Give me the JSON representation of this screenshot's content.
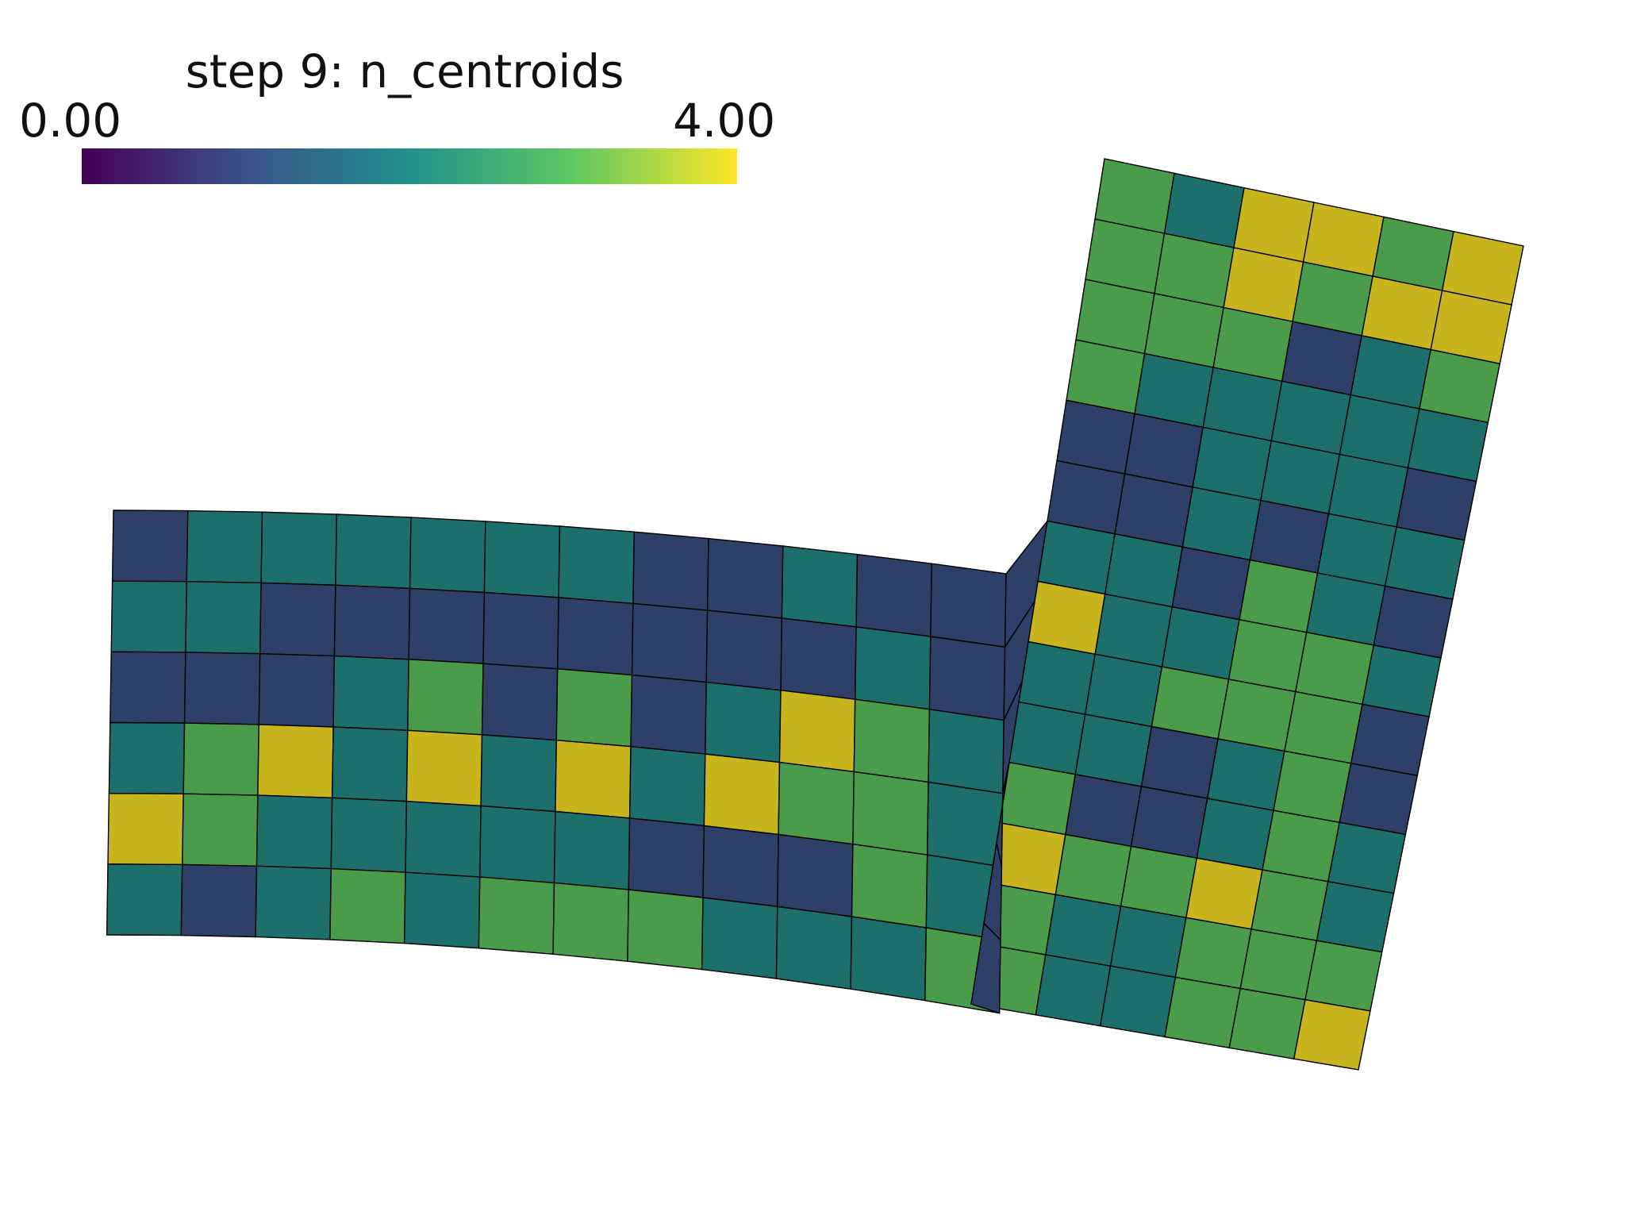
{
  "colorbar": {
    "title": "step 9: n_centroids",
    "min_label": "0.00",
    "max_label": "4.00",
    "range": [
      0,
      4
    ],
    "colormap": "viridis",
    "stops": [
      "#440154",
      "#3b528b",
      "#21918c",
      "#5ec962",
      "#fde725"
    ]
  },
  "palette": {
    "1": "#2e3f68",
    "2": "#1c6f6a",
    "3": "#4a9c4a",
    "4": "#c8b41c"
  },
  "grid_lines": "#000000",
  "mesh": {
    "lower_rows": [
      [
        1,
        2,
        2,
        2,
        2,
        2,
        2,
        1,
        1,
        2,
        1,
        1
      ],
      [
        2,
        2,
        1,
        1,
        1,
        1,
        1,
        1,
        1,
        1,
        2,
        1
      ],
      [
        1,
        1,
        1,
        2,
        3,
        1,
        3,
        1,
        2,
        4,
        3,
        2
      ],
      [
        2,
        3,
        4,
        2,
        4,
        2,
        4,
        2,
        4,
        3,
        3,
        2
      ],
      [
        4,
        3,
        2,
        2,
        2,
        2,
        2,
        1,
        1,
        1,
        3,
        2
      ],
      [
        2,
        1,
        2,
        3,
        2,
        3,
        3,
        3,
        2,
        2,
        2,
        3
      ]
    ],
    "strip_column": [
      1,
      1,
      1,
      1,
      1,
      1,
      1,
      1,
      1,
      1,
      1,
      1,
      1,
      1,
      1,
      1,
      1,
      1,
      1,
      1
    ],
    "upper_rows": [
      [
        3,
        2,
        4,
        4,
        3,
        4
      ],
      [
        3,
        3,
        4,
        3,
        4,
        4
      ],
      [
        3,
        3,
        3,
        1,
        2,
        3
      ],
      [
        3,
        2,
        2,
        2,
        2,
        2
      ],
      [
        1,
        1,
        2,
        2,
        2,
        1
      ],
      [
        1,
        1,
        2,
        1,
        2,
        2
      ],
      [
        2,
        2,
        1,
        3,
        2,
        1
      ],
      [
        4,
        2,
        2,
        3,
        3,
        2
      ],
      [
        2,
        2,
        3,
        3,
        3,
        1
      ],
      [
        2,
        2,
        1,
        2,
        3,
        1
      ],
      [
        3,
        1,
        1,
        2,
        3,
        2
      ],
      [
        4,
        3,
        3,
        4,
        3,
        2
      ],
      [
        3,
        2,
        2,
        3,
        3,
        3
      ],
      [
        3,
        2,
        2,
        3,
        3,
        4
      ]
    ]
  }
}
